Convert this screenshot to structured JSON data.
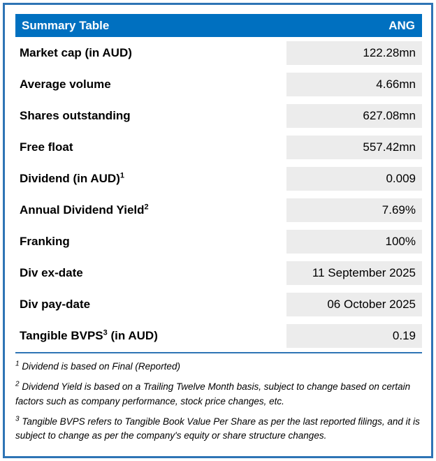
{
  "table": {
    "title": "Summary Table",
    "ticker": "ANG",
    "rows": [
      {
        "label": "Market cap (in AUD)",
        "sup": "",
        "suffix": "",
        "value": "122.28mn"
      },
      {
        "label": "Average volume",
        "sup": "",
        "suffix": "",
        "value": "4.66mn"
      },
      {
        "label": "Shares outstanding",
        "sup": "",
        "suffix": "",
        "value": "627.08mn"
      },
      {
        "label": "Free float",
        "sup": "",
        "suffix": "",
        "value": "557.42mn"
      },
      {
        "label": "Dividend (in AUD)",
        "sup": "1",
        "suffix": "",
        "value": "0.009"
      },
      {
        "label": "Annual Dividend Yield",
        "sup": "2",
        "suffix": "",
        "value": "7.69%"
      },
      {
        "label": "Franking",
        "sup": "",
        "suffix": "",
        "value": "100%"
      },
      {
        "label": "Div ex-date",
        "sup": "",
        "suffix": "",
        "value": "11 September 2025"
      },
      {
        "label": "Div pay-date",
        "sup": "",
        "suffix": "",
        "value": "06 October 2025"
      },
      {
        "label": "Tangible BVPS",
        "sup": "3",
        "suffix": " (in AUD)",
        "value": "0.19"
      }
    ],
    "footnotes": [
      {
        "sup": "1",
        "text": "Dividend is based on Final (Reported)"
      },
      {
        "sup": "2",
        "text": "Dividend Yield is based on a Trailing Twelve Month basis, subject to change based on certain factors such as company performance, stock price changes, etc."
      },
      {
        "sup": "3",
        "text": "Tangible BVPS refers to Tangible Book Value Per Share as per the last reported filings, and it is subject to change as per the company's equity or share structure changes."
      }
    ]
  },
  "colors": {
    "header_bg": "#0070C0",
    "header_text": "#FFFFFF",
    "value_cell_bg": "#ECECEC",
    "frame_border": "#2E74B5"
  }
}
